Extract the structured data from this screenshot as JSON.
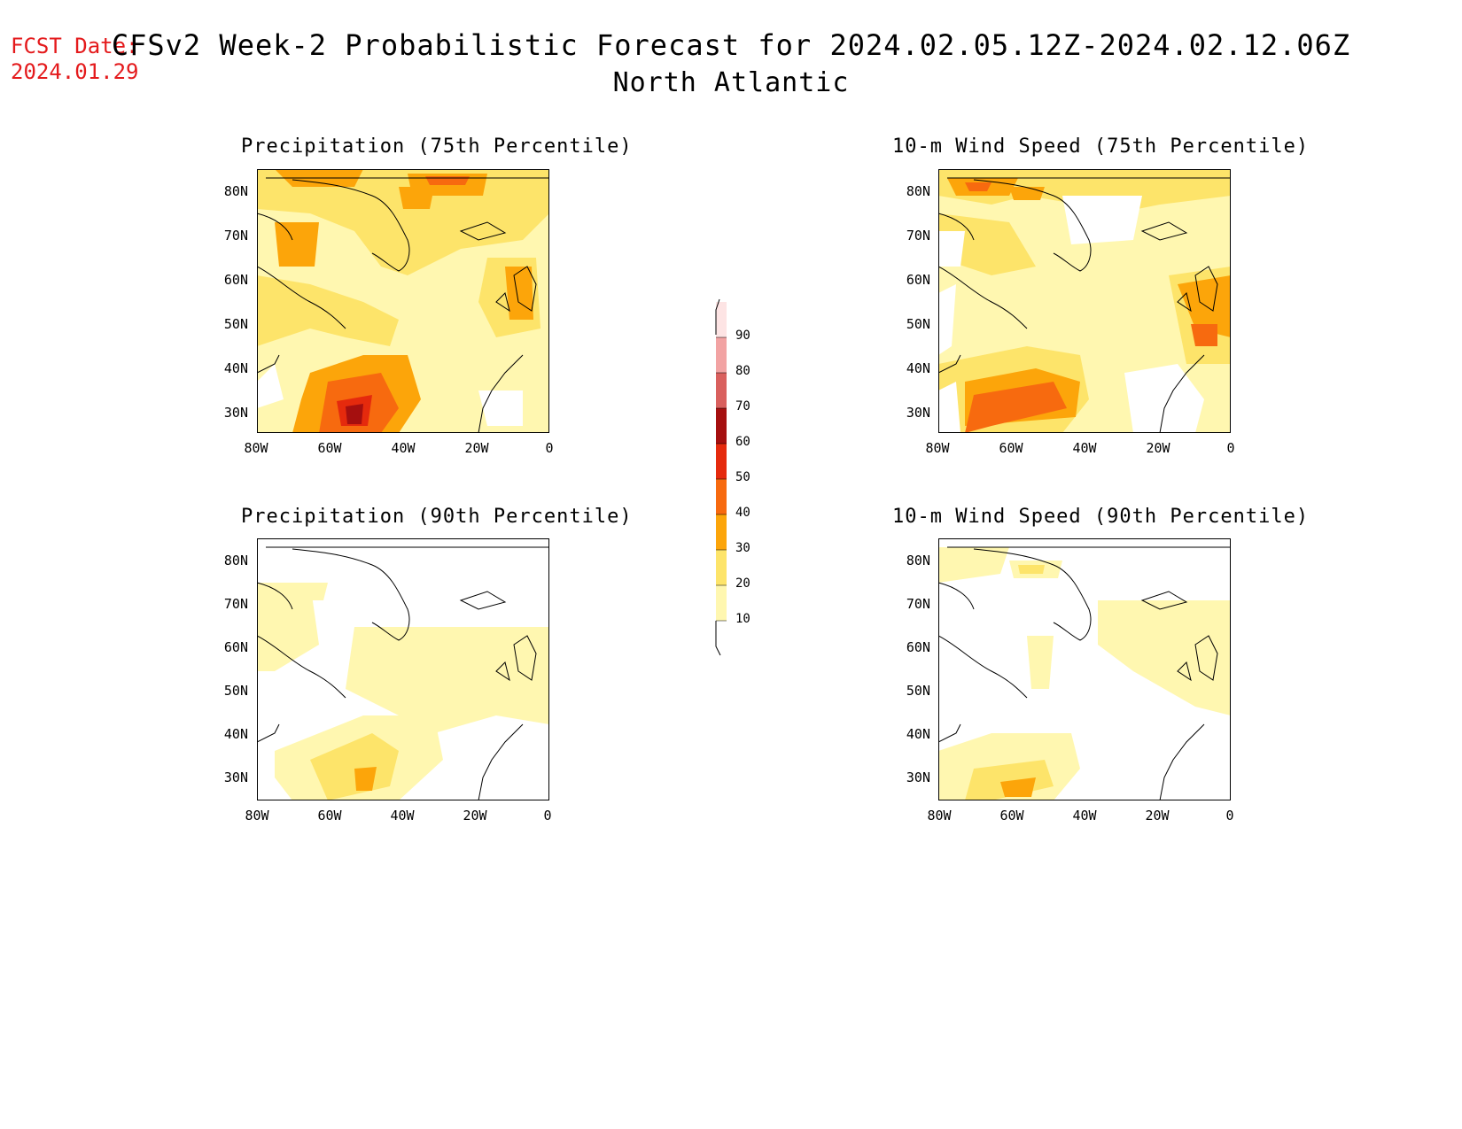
{
  "fcst_date": {
    "label": "FCST Date:",
    "value": "2024.01.29"
  },
  "title": "CFSv2 Week-2 Probabilistic Forecast for 2024.02.05.12Z-2024.02.12.06Z",
  "subtitle": "North Atlantic",
  "lat_labels": [
    "80N",
    "70N",
    "60N",
    "50N",
    "40N",
    "30N"
  ],
  "lon_labels": [
    "80W",
    "60W",
    "40W",
    "20W",
    "0"
  ],
  "panels": [
    {
      "title": "Precipitation (75th Percentile)"
    },
    {
      "title": "10-m Wind Speed (75th Percentile)"
    },
    {
      "title": "Precipitation (90th Percentile)"
    },
    {
      "title": "10-m Wind Speed (90th Percentile)"
    }
  ],
  "colorbar": {
    "levels": [
      "10",
      "20",
      "30",
      "40",
      "50",
      "60",
      "70",
      "80",
      "90"
    ],
    "colors": [
      "#fff7b0",
      "#fde46a",
      "#fca50a",
      "#f76a0f",
      "#e52a0d",
      "#a50f0f",
      "#d9605e",
      "#f2a3a3",
      "#fde4e4"
    ]
  }
}
